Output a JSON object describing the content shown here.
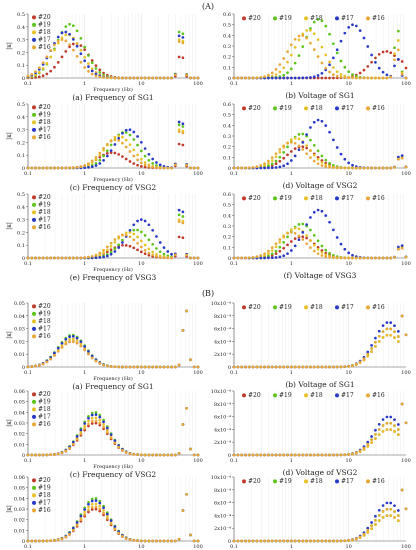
{
  "figure": {
    "section_a_label": "(A)",
    "section_b_label": "(B)"
  },
  "series_styles": [
    {
      "name": "#20",
      "color": "#c0392b"
    },
    {
      "name": "#19",
      "color": "#5cc41a"
    },
    {
      "name": "#18",
      "color": "#e6c229"
    },
    {
      "name": "#17",
      "color": "#2838c8"
    },
    {
      "name": "#16",
      "color": "#e8a838"
    }
  ],
  "chart_data": [
    {
      "type": "scatter",
      "caption": "(a) Frequency of SG1",
      "xlabel": "Frequency (Hz)",
      "ylabel": "|κ|",
      "x_scale": "log",
      "xlim": [
        0.1,
        100
      ],
      "x_ticks": [
        "0.1",
        "1",
        "10",
        "100"
      ],
      "ylim": [
        0,
        0.5
      ],
      "y_ticks": [
        "0",
        "0.1",
        "0.2",
        "0.3",
        "0.4",
        "0.5"
      ],
      "legend_position": "top-left",
      "legend_layout": "vertical",
      "series": [
        {
          "name": "#20",
          "peak_f": 0.7,
          "peak_y": 0.27,
          "resonance_f": 50,
          "resonance_y": 0.22
        },
        {
          "name": "#19",
          "peak_f": 0.55,
          "peak_y": 0.42,
          "resonance_f": 50,
          "resonance_y": 0.48
        },
        {
          "name": "#18",
          "peak_f": 0.5,
          "peak_y": 0.34,
          "resonance_f": 50,
          "resonance_y": 0.4
        },
        {
          "name": "#17",
          "peak_f": 0.45,
          "peak_y": 0.36,
          "resonance_f": 50,
          "resonance_y": 0.44
        },
        {
          "name": "#16",
          "peak_f": 0.4,
          "peak_y": 0.3,
          "resonance_f": 50,
          "resonance_y": 0.38
        }
      ]
    },
    {
      "type": "scatter",
      "caption": "(b) Voltage of SG1",
      "xlabel": "",
      "ylabel": "",
      "x_scale": "log",
      "xlim": [
        0.1,
        100
      ],
      "x_ticks": [
        "0.1",
        "1",
        "10",
        "100"
      ],
      "ylim": [
        0,
        0.6
      ],
      "y_ticks": [
        "0",
        "0.1",
        "0.2",
        "0.3",
        "0.4",
        "0.5",
        "0.6"
      ],
      "legend_position": "top",
      "legend_layout": "horizontal",
      "series": [
        {
          "name": "#20",
          "peak_f": 45,
          "peak_y": 0.25,
          "resonance_f": 80,
          "resonance_y": 0.2
        },
        {
          "name": "#19",
          "peak_f": 3,
          "peak_y": 0.55,
          "resonance_f": 70,
          "resonance_y": 0.5
        },
        {
          "name": "#18",
          "peak_f": 2,
          "peak_y": 0.45,
          "resonance_f": 70,
          "resonance_y": 0.4
        },
        {
          "name": "#17",
          "peak_f": 12,
          "peak_y": 0.5,
          "resonance_f": 70,
          "resonance_y": 0.2
        },
        {
          "name": "#16",
          "peak_f": 1.5,
          "peak_y": 0.4,
          "resonance_f": 70,
          "resonance_y": 0.3
        }
      ]
    },
    {
      "type": "scatter",
      "caption": "(c) Frequency of VSG2",
      "xlabel": "Frequency (Hz)",
      "ylabel": "|κ|",
      "x_scale": "log",
      "xlim": [
        0.1,
        100
      ],
      "x_ticks": [
        "0.1",
        "1",
        "10",
        "100"
      ],
      "ylim": [
        0,
        0.5
      ],
      "y_ticks": [
        "0",
        "0.1",
        "0.2",
        "0.3",
        "0.4",
        "0.5"
      ],
      "legend_position": "top-left",
      "legend_layout": "vertical",
      "series": [
        {
          "name": "#20",
          "peak_f": 3,
          "peak_y": 0.12,
          "resonance_f": 50,
          "resonance_y": 0.25
        },
        {
          "name": "#19",
          "peak_f": 5,
          "peak_y": 0.28,
          "resonance_f": 50,
          "resonance_y": 0.45
        },
        {
          "name": "#18",
          "peak_f": 4,
          "peak_y": 0.25,
          "resonance_f": 50,
          "resonance_y": 0.4
        },
        {
          "name": "#17",
          "peak_f": 6,
          "peak_y": 0.3,
          "resonance_f": 50,
          "resonance_y": 0.48
        },
        {
          "name": "#16",
          "peak_f": 3.5,
          "peak_y": 0.22,
          "resonance_f": 50,
          "resonance_y": 0.38
        }
      ]
    },
    {
      "type": "scatter",
      "caption": "(d) Voltage of VSG2",
      "xlabel": "",
      "ylabel": "",
      "x_scale": "log",
      "xlim": [
        0.1,
        100
      ],
      "x_ticks": [
        "0.1",
        "1",
        "10",
        "100"
      ],
      "ylim": [
        0,
        0.6
      ],
      "y_ticks": [
        "0",
        "0.1",
        "0.2",
        "0.3",
        "0.4",
        "0.5",
        "0.6"
      ],
      "legend_position": "top",
      "legend_layout": "horizontal",
      "series": [
        {
          "name": "#20",
          "peak_f": 1.5,
          "peak_y": 0.2,
          "resonance_f": 80,
          "resonance_y": 0.12
        },
        {
          "name": "#19",
          "peak_f": 1.5,
          "peak_y": 0.32,
          "resonance_f": 80,
          "resonance_y": 0.14
        },
        {
          "name": "#18",
          "peak_f": 1.2,
          "peak_y": 0.28,
          "resonance_f": 80,
          "resonance_y": 0.13
        },
        {
          "name": "#17",
          "peak_f": 3,
          "peak_y": 0.45,
          "resonance_f": 80,
          "resonance_y": 0.15
        },
        {
          "name": "#16",
          "peak_f": 1.0,
          "peak_y": 0.24,
          "resonance_f": 80,
          "resonance_y": 0.12
        }
      ]
    },
    {
      "type": "scatter",
      "caption": "(e) Frequency of VSG3",
      "xlabel": "Frequency (Hz)",
      "ylabel": "|κ|",
      "x_scale": "log",
      "xlim": [
        0.1,
        100
      ],
      "x_ticks": [
        "0.1",
        "1",
        "10",
        "100"
      ],
      "ylim": [
        0,
        0.5
      ],
      "y_ticks": [
        "0",
        "0.1",
        "0.2",
        "0.3",
        "0.4",
        "0.5"
      ],
      "legend_position": "top-left",
      "legend_layout": "vertical",
      "series": [
        {
          "name": "#20",
          "peak_f": 5,
          "peak_y": 0.1,
          "resonance_f": 50,
          "resonance_y": 0.22
        },
        {
          "name": "#19",
          "peak_f": 8,
          "peak_y": 0.22,
          "resonance_f": 50,
          "resonance_y": 0.45
        },
        {
          "name": "#18",
          "peak_f": 6,
          "peak_y": 0.2,
          "resonance_f": 50,
          "resonance_y": 0.4
        },
        {
          "name": "#17",
          "peak_f": 10,
          "peak_y": 0.3,
          "resonance_f": 50,
          "resonance_y": 0.5
        },
        {
          "name": "#16",
          "peak_f": 5,
          "peak_y": 0.18,
          "resonance_f": 50,
          "resonance_y": 0.38
        }
      ]
    },
    {
      "type": "scatter",
      "caption": "(f) Voltage of VSG3",
      "xlabel": "",
      "ylabel": "",
      "x_scale": "log",
      "xlim": [
        0.1,
        100
      ],
      "x_ticks": [
        "0.1",
        "1",
        "10",
        "100"
      ],
      "ylim": [
        0,
        0.6
      ],
      "y_ticks": [
        "0",
        "0.1",
        "0.2",
        "0.3",
        "0.4",
        "0.5",
        "0.6"
      ],
      "legend_position": "top",
      "legend_layout": "horizontal",
      "series": [
        {
          "name": "#20",
          "peak_f": 1.5,
          "peak_y": 0.2,
          "resonance_f": 80,
          "resonance_y": 0.12
        },
        {
          "name": "#19",
          "peak_f": 1.5,
          "peak_y": 0.32,
          "resonance_f": 80,
          "resonance_y": 0.14
        },
        {
          "name": "#18",
          "peak_f": 1.2,
          "peak_y": 0.28,
          "resonance_f": 80,
          "resonance_y": 0.13
        },
        {
          "name": "#17",
          "peak_f": 3,
          "peak_y": 0.45,
          "resonance_f": 80,
          "resonance_y": 0.15
        },
        {
          "name": "#16",
          "peak_f": 1.0,
          "peak_y": 0.24,
          "resonance_f": 80,
          "resonance_y": 0.12
        }
      ]
    },
    {
      "type": "scatter",
      "caption": "(a) Frequency of SG1",
      "xlabel": "Frequency (Hz)",
      "ylabel": "|κ|",
      "x_scale": "log",
      "xlim": [
        0.1,
        100
      ],
      "x_ticks": [
        "0.1",
        "1",
        "10",
        "100"
      ],
      "ylim": [
        0,
        0.05
      ],
      "y_ticks": [
        "0",
        "0.01",
        "0.02",
        "0.03",
        "0.04",
        "0.05"
      ],
      "legend_position": "top-left",
      "legend_layout": "vertical",
      "series": [
        {
          "name": "#20",
          "peak_f": 0.6,
          "peak_y": 0.02,
          "resonance_f": 60,
          "resonance_y": 0.05
        },
        {
          "name": "#19",
          "peak_f": 0.6,
          "peak_y": 0.025,
          "resonance_f": 60,
          "resonance_y": 0.05
        },
        {
          "name": "#18",
          "peak_f": 0.6,
          "peak_y": 0.022,
          "resonance_f": 60,
          "resonance_y": 0.05
        },
        {
          "name": "#17",
          "peak_f": 0.6,
          "peak_y": 0.024,
          "resonance_f": 60,
          "resonance_y": 0.05
        },
        {
          "name": "#16",
          "peak_f": 0.6,
          "peak_y": 0.02,
          "resonance_f": 60,
          "resonance_y": 0.05
        }
      ]
    },
    {
      "type": "scatter",
      "caption": "(b) Voltage of SG1",
      "xlabel": "",
      "ylabel": "",
      "x_scale": "log",
      "xlim": [
        0.1,
        100
      ],
      "x_ticks": [
        "0.1",
        "1",
        "10",
        "100"
      ],
      "ylim": [
        0,
        0.001
      ],
      "y_ticks": [
        "0",
        "2x10⁻⁴",
        "4x10⁻⁴",
        "6x10⁻⁴",
        "8x10⁻⁴",
        "10x10⁻⁴"
      ],
      "legend_position": "top",
      "legend_layout": "horizontal",
      "series": [
        {
          "name": "#20",
          "peak_f": 50,
          "peak_y": 0.0005,
          "resonance_f": 90,
          "resonance_y": 0.0009
        },
        {
          "name": "#19",
          "peak_f": 50,
          "peak_y": 0.0006,
          "resonance_f": 90,
          "resonance_y": 0.0009
        },
        {
          "name": "#18",
          "peak_f": 50,
          "peak_y": 0.0005,
          "resonance_f": 90,
          "resonance_y": 0.0009
        },
        {
          "name": "#17",
          "peak_f": 50,
          "peak_y": 0.0007,
          "resonance_f": 90,
          "resonance_y": 0.0009
        },
        {
          "name": "#16",
          "peak_f": 50,
          "peak_y": 0.0006,
          "resonance_f": 90,
          "resonance_y": 0.0009
        }
      ]
    },
    {
      "type": "scatter",
      "caption": "(c) Frequency of VSG2",
      "xlabel": "Frequency (Hz)",
      "ylabel": "|κ|",
      "x_scale": "log",
      "xlim": [
        0.1,
        100
      ],
      "x_ticks": [
        "0.1",
        "1",
        "10",
        "100"
      ],
      "ylim": [
        0,
        0.06
      ],
      "y_ticks": [
        "0",
        "0.01",
        "0.02",
        "0.03",
        "0.04",
        "0.05",
        "0.06"
      ],
      "legend_position": "top-left",
      "legend_layout": "vertical",
      "series": [
        {
          "name": "#20",
          "peak_f": 1.5,
          "peak_y": 0.03,
          "resonance_f": 60,
          "resonance_y": 0.05
        },
        {
          "name": "#19",
          "peak_f": 1.5,
          "peak_y": 0.04,
          "resonance_f": 60,
          "resonance_y": 0.05
        },
        {
          "name": "#18",
          "peak_f": 1.5,
          "peak_y": 0.035,
          "resonance_f": 60,
          "resonance_y": 0.05
        },
        {
          "name": "#17",
          "peak_f": 1.5,
          "peak_y": 0.038,
          "resonance_f": 60,
          "resonance_y": 0.05
        },
        {
          "name": "#16",
          "peak_f": 1.5,
          "peak_y": 0.032,
          "resonance_f": 60,
          "resonance_y": 0.05
        }
      ]
    },
    {
      "type": "scatter",
      "caption": "(d) Voltage of VSG2",
      "xlabel": "",
      "ylabel": "",
      "x_scale": "log",
      "xlim": [
        0.1,
        100
      ],
      "x_ticks": [
        "0.1",
        "1",
        "10",
        "100"
      ],
      "ylim": [
        0,
        0.001
      ],
      "y_ticks": [
        "0",
        "2x10⁻⁴",
        "4x10⁻⁴",
        "6x10⁻⁴",
        "8x10⁻⁴",
        "10x10⁻⁴"
      ],
      "legend_position": "top",
      "legend_layout": "horizontal",
      "series": [
        {
          "name": "#20",
          "peak_f": 50,
          "peak_y": 0.0004,
          "resonance_f": 90,
          "resonance_y": 0.0009
        },
        {
          "name": "#19",
          "peak_f": 50,
          "peak_y": 0.0005,
          "resonance_f": 90,
          "resonance_y": 0.0009
        },
        {
          "name": "#18",
          "peak_f": 50,
          "peak_y": 0.0004,
          "resonance_f": 90,
          "resonance_y": 0.0009
        },
        {
          "name": "#17",
          "peak_f": 50,
          "peak_y": 0.0006,
          "resonance_f": 90,
          "resonance_y": 0.0009
        },
        {
          "name": "#16",
          "peak_f": 50,
          "peak_y": 0.0005,
          "resonance_f": 90,
          "resonance_y": 0.0009
        }
      ]
    },
    {
      "type": "scatter",
      "caption": "(e) Frequency of VSG3",
      "xlabel": "Frequency (Hz)",
      "ylabel": "|κ|",
      "x_scale": "log",
      "xlim": [
        0.1,
        100
      ],
      "x_ticks": [
        "0.1",
        "1",
        "10",
        "100"
      ],
      "ylim": [
        0,
        0.06
      ],
      "y_ticks": [
        "0",
        "0.01",
        "0.02",
        "0.03",
        "0.04",
        "0.05",
        "0.06"
      ],
      "legend_position": "top-left",
      "legend_layout": "vertical",
      "series": [
        {
          "name": "#20",
          "peak_f": 1.5,
          "peak_y": 0.03,
          "resonance_f": 60,
          "resonance_y": 0.05
        },
        {
          "name": "#19",
          "peak_f": 1.5,
          "peak_y": 0.04,
          "resonance_f": 60,
          "resonance_y": 0.05
        },
        {
          "name": "#18",
          "peak_f": 1.5,
          "peak_y": 0.035,
          "resonance_f": 60,
          "resonance_y": 0.05
        },
        {
          "name": "#17",
          "peak_f": 1.5,
          "peak_y": 0.038,
          "resonance_f": 60,
          "resonance_y": 0.05
        },
        {
          "name": "#16",
          "peak_f": 1.5,
          "peak_y": 0.032,
          "resonance_f": 60,
          "resonance_y": 0.05
        }
      ]
    },
    {
      "type": "scatter",
      "caption": "(f) Voltage of VSG3",
      "xlabel": "",
      "ylabel": "",
      "x_scale": "log",
      "xlim": [
        0.1,
        100
      ],
      "x_ticks": [
        "0.1",
        "1",
        "10",
        "100"
      ],
      "ylim": [
        0,
        0.001
      ],
      "y_ticks": [
        "0",
        "2x10⁻⁴",
        "4x10⁻⁴",
        "6x10⁻⁴",
        "8x10⁻⁴",
        "10x10⁻⁴"
      ],
      "legend_position": "top",
      "legend_layout": "horizontal",
      "series": [
        {
          "name": "#20",
          "peak_f": 50,
          "peak_y": 0.0004,
          "resonance_f": 90,
          "resonance_y": 0.0009
        },
        {
          "name": "#19",
          "peak_f": 50,
          "peak_y": 0.0005,
          "resonance_f": 90,
          "resonance_y": 0.0009
        },
        {
          "name": "#18",
          "peak_f": 50,
          "peak_y": 0.0004,
          "resonance_f": 90,
          "resonance_y": 0.0009
        },
        {
          "name": "#17",
          "peak_f": 50,
          "peak_y": 0.0006,
          "resonance_f": 90,
          "resonance_y": 0.0009
        },
        {
          "name": "#16",
          "peak_f": 50,
          "peak_y": 0.0005,
          "resonance_f": 90,
          "resonance_y": 0.0009
        }
      ]
    }
  ]
}
